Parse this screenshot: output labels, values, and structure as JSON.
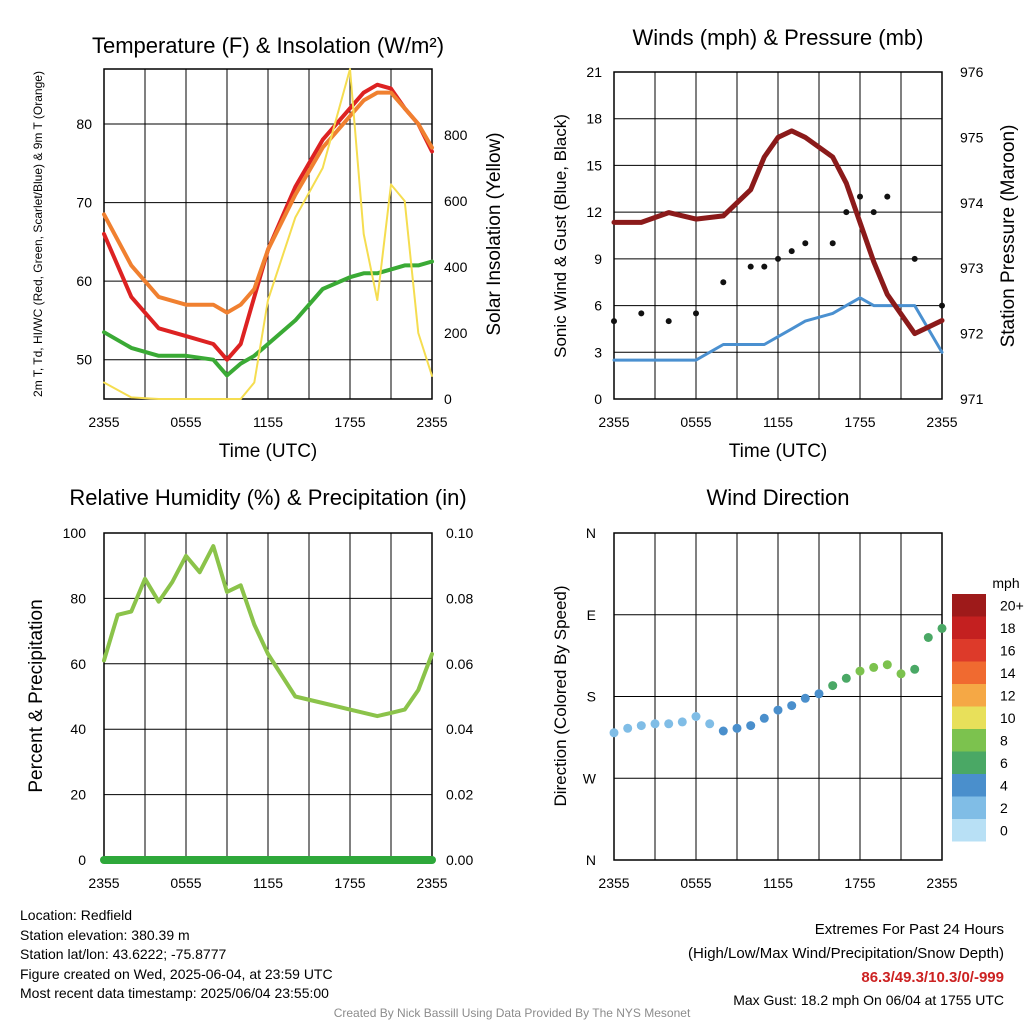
{
  "chart_data": [
    {
      "type": "line",
      "title": "Temperature (F) & Insolation (W/m²)",
      "xlabel": "Time (UTC)",
      "ylabel": "2m T, Td, HI/WC (Red, Green, Scarlet/Blue) & 9m T (Orange)",
      "y2label": "Solar Insolation (Yellow)",
      "x_ticks": [
        "2355",
        "0555",
        "1155",
        "1755",
        "2355"
      ],
      "ylim": [
        45,
        87
      ],
      "y_ticks": [
        50,
        60,
        70,
        80
      ],
      "y2lim": [
        0,
        1000
      ],
      "y2_ticks": [
        0,
        200,
        400,
        600,
        800
      ],
      "x_hours": [
        0,
        2,
        4,
        6,
        8,
        9,
        10,
        11,
        12,
        14,
        16,
        18,
        19,
        20,
        21,
        22,
        23,
        24
      ],
      "series": [
        {
          "color": "#dd2222",
          "values": [
            66,
            58,
            54,
            53,
            52,
            50,
            52,
            58,
            64,
            72,
            78,
            82,
            84,
            85,
            84.5,
            82,
            80,
            76.5
          ]
        },
        {
          "color": "#f08030",
          "values": [
            68.5,
            62,
            58,
            57,
            57,
            56,
            57,
            59,
            64,
            71,
            77,
            81,
            83,
            84,
            84,
            82,
            80,
            77
          ]
        },
        {
          "color": "#3aaa35",
          "values": [
            53.5,
            51.5,
            50.5,
            50.5,
            50,
            48,
            49.5,
            50.5,
            52,
            55,
            59,
            60.5,
            61,
            61,
            61.5,
            62,
            62,
            62.5
          ]
        },
        {
          "color": "#f5dd50",
          "axis": "y2",
          "values": [
            50,
            5,
            0,
            0,
            0,
            0,
            0,
            50,
            300,
            550,
            700,
            1000,
            500,
            300,
            650,
            600,
            200,
            70
          ]
        }
      ]
    },
    {
      "type": "line",
      "title": "Winds (mph) & Pressure (mb)",
      "xlabel": "Time (UTC)",
      "ylabel": "Sonic Wind & Gust (Blue, Black)",
      "y2label": "Station Pressure (Maroon)",
      "x_ticks": [
        "2355",
        "0555",
        "1155",
        "1755",
        "2355"
      ],
      "ylim": [
        0,
        21
      ],
      "y_ticks": [
        0,
        3,
        6,
        9,
        12,
        15,
        18,
        21
      ],
      "y2lim": [
        971,
        976
      ],
      "y2_ticks": [
        971,
        972,
        973,
        974,
        975,
        976
      ],
      "x_hours": [
        0,
        2,
        4,
        6,
        8,
        10,
        11,
        12,
        13,
        14,
        16,
        17,
        18,
        19,
        20,
        22,
        24
      ],
      "series": [
        {
          "color": "#4a90d0",
          "values": [
            2.5,
            2.5,
            2.5,
            2.5,
            3.5,
            3.5,
            3.5,
            4,
            4.5,
            5,
            5.5,
            6,
            6.5,
            6,
            6,
            6,
            3
          ]
        },
        {
          "color": "#111111",
          "values": [
            5,
            5.5,
            5,
            5.5,
            7.5,
            8.5,
            8.5,
            9,
            9.5,
            10,
            10,
            12,
            13,
            12,
            13,
            9,
            6
          ]
        },
        {
          "color": "#8b1a1a",
          "axis": "y2",
          "values": [
            973.7,
            973.7,
            973.85,
            973.75,
            973.8,
            974.2,
            974.7,
            975.0,
            975.1,
            975.0,
            974.7,
            974.3,
            973.7,
            973.1,
            972.6,
            972.0,
            972.2
          ]
        }
      ]
    },
    {
      "type": "line",
      "title": "Relative Humidity (%) & Precipitation (in)",
      "xlabel": "",
      "ylabel": "Percent & Precipitation",
      "x_ticks": [
        "2355",
        "0555",
        "1155",
        "1755",
        "2355"
      ],
      "ylim": [
        0,
        100
      ],
      "y_ticks": [
        0,
        20,
        40,
        60,
        80,
        100
      ],
      "y2lim": [
        0,
        0.1
      ],
      "y2_ticks": [
        "0.00",
        "0.02",
        "0.04",
        "0.06",
        "0.08",
        "0.10"
      ],
      "x_hours": [
        0,
        1,
        2,
        3,
        4,
        5,
        6,
        7,
        8,
        9,
        10,
        11,
        12,
        14,
        16,
        18,
        20,
        21,
        22,
        23,
        24
      ],
      "series": [
        {
          "color": "#8bc34a",
          "values": [
            61,
            75,
            76,
            86,
            79,
            85,
            93,
            88,
            96,
            82,
            84,
            72,
            63,
            50,
            48,
            46,
            44,
            45,
            46,
            52,
            63
          ]
        },
        {
          "color": "#2ea83a",
          "values": [
            0,
            0,
            0,
            0,
            0,
            0,
            0,
            0,
            0,
            0,
            0,
            0,
            0,
            0,
            0,
            0,
            0,
            0,
            0,
            0,
            0
          ]
        }
      ]
    },
    {
      "type": "scatter",
      "title": "Wind Direction",
      "xlabel": "",
      "ylabel": "Direction (Colored By Speed)",
      "x_ticks": [
        "2355",
        "0555",
        "1155",
        "1755",
        "2355"
      ],
      "y_ticks": [
        "N",
        "E",
        "S",
        "W",
        "N"
      ],
      "ylim": [
        0,
        360
      ],
      "legend": {
        "title": "mph",
        "placement": "right",
        "levels": [
          "0",
          "2",
          "4",
          "6",
          "8",
          "10",
          "12",
          "14",
          "16",
          "18",
          "20+"
        ],
        "colors": [
          "#b8e0f5",
          "#80bde6",
          "#4a8fcc",
          "#4aa865",
          "#7cc24e",
          "#e8e05a",
          "#f5a845",
          "#f06a30",
          "#dd3a2a",
          "#c42020",
          "#9e1a1a"
        ]
      },
      "x_hours": [
        0,
        1,
        2,
        3,
        4,
        5,
        6,
        7,
        8,
        9,
        10,
        11,
        12,
        13,
        14,
        15,
        16,
        17,
        18,
        19,
        20,
        21,
        22,
        23,
        24
      ],
      "values": [
        140,
        145,
        148,
        150,
        150,
        152,
        158,
        150,
        142,
        145,
        148,
        156,
        165,
        170,
        178,
        183,
        192,
        200,
        208,
        212,
        215,
        205,
        210,
        245,
        255
      ],
      "speeds": [
        2,
        2,
        2,
        2,
        2,
        2,
        2,
        2,
        4,
        3,
        3,
        4,
        4,
        4,
        4,
        4,
        5,
        6,
        7,
        8,
        7,
        7,
        6,
        6,
        5
      ]
    }
  ],
  "footer": {
    "location": "Location: Redfield",
    "elevation": "Station elevation: 380.39 m",
    "latlon": "Station lat/lon: 43.6222; -75.8777",
    "created": "Figure created on Wed, 2025-06-04, at 23:59 UTC",
    "recent": "Most recent data timestamp: 2025/06/04 23:55:00"
  },
  "extremes": {
    "title": "Extremes For Past 24 Hours",
    "subtitle": "(High/Low/Max Wind/Precipitation/Snow Depth)",
    "values": "86.3/49.3/10.3/0/-999",
    "gust": "Max Gust: 18.2 mph On 06/04 at 1755 UTC"
  },
  "credit": "Created By Nick Bassill Using Data Provided By The NYS Mesonet"
}
